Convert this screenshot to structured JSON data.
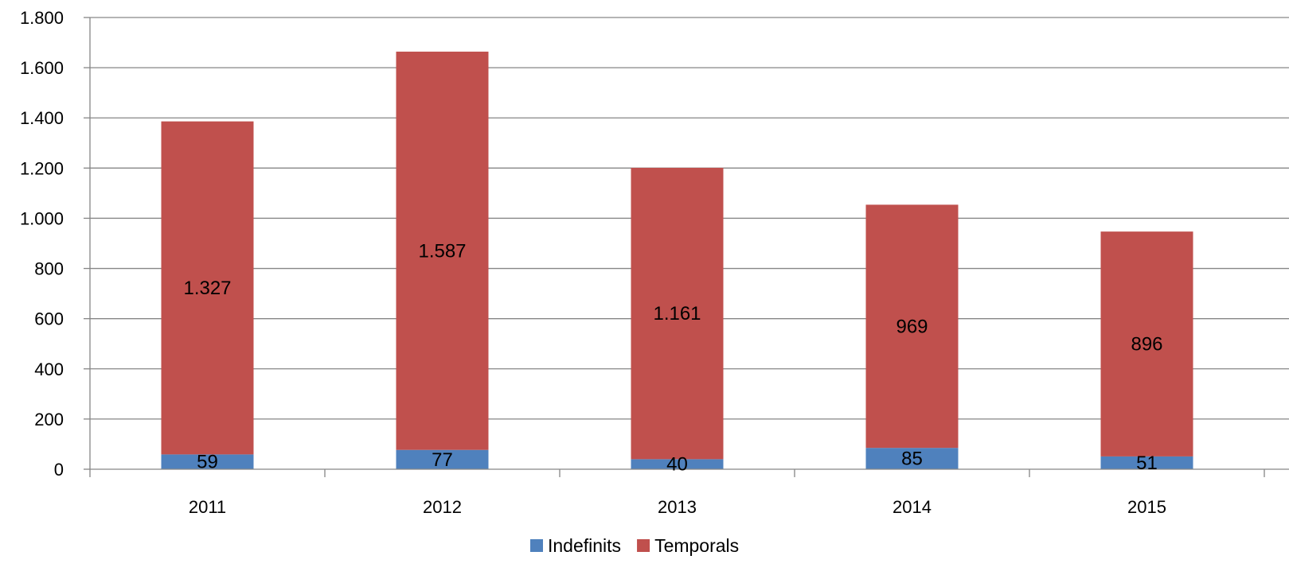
{
  "chart_data": {
    "type": "bar",
    "stacked": true,
    "categories": [
      "2011",
      "2012",
      "2013",
      "2014",
      "2015"
    ],
    "series": [
      {
        "name": "Indefinits",
        "values": [
          59,
          77,
          40,
          85,
          51
        ],
        "labels": [
          "59",
          "77",
          "40",
          "85",
          "51"
        ],
        "color": "#4f81bd"
      },
      {
        "name": "Temporals",
        "values": [
          1327,
          1587,
          1161,
          969,
          896
        ],
        "labels": [
          "1.327",
          "1.587",
          "1.161",
          "969",
          "896"
        ],
        "color": "#c0504d"
      }
    ],
    "ylim": [
      0,
      1800
    ],
    "yticks": [
      0,
      200,
      400,
      600,
      800,
      1000,
      1200,
      1400,
      1600,
      1800
    ],
    "ytick_labels": [
      "0",
      "200",
      "400",
      "600",
      "800",
      "1.000",
      "1.200",
      "1.400",
      "1.600",
      "1.800"
    ],
    "grid": true,
    "legend": "bottom-center",
    "gridline_color": "#868686",
    "axis_color": "#868686"
  }
}
